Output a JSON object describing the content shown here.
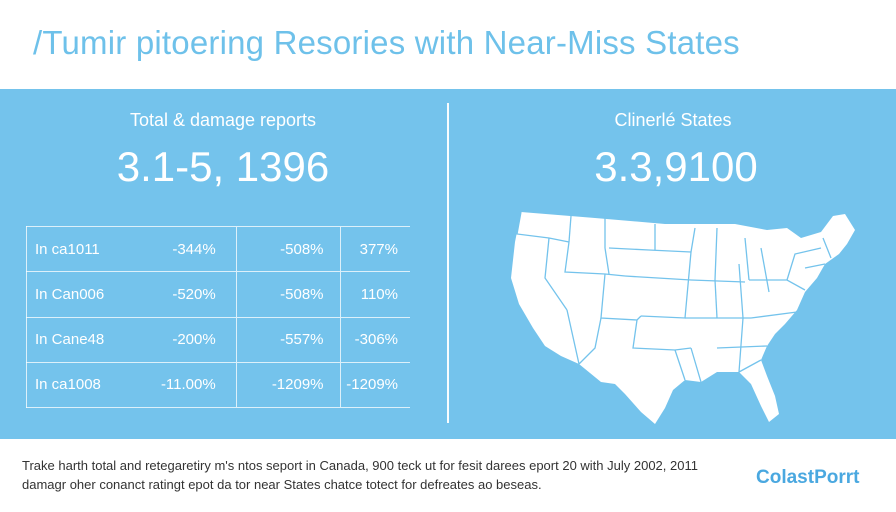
{
  "header": {
    "title": "/Tumir pitoering Resories with Near-Miss States"
  },
  "left_panel": {
    "label": "Total & damage reports",
    "value": "3.1-5, 1396",
    "table": [
      [
        "In ca1011",
        "-344%",
        "-508%",
        "377%"
      ],
      [
        "In Can006",
        "-520%",
        "-508%",
        "110%"
      ],
      [
        "In Cane48",
        "-200%",
        "-557%",
        "-306%"
      ],
      [
        "In ca1008",
        "-11.00%",
        "-1209%",
        "-1209%"
      ]
    ]
  },
  "right_panel": {
    "label": "Clinerlé States",
    "value": "3.3,9100"
  },
  "footer": {
    "line1": "Trake harth total and retegaretiry m's ntos seport in Canada, 900 teck ut for fesit darees eport 20 with July 2002, 2011",
    "line2": "damagr oher conanct ratingt epot da tor near States chatce totect for defreates ao beseas.",
    "brand": "ColastPorrt"
  },
  "colors": {
    "panel": "#74c3ec",
    "title": "#6ec1ea",
    "brand": "#4aa8e0"
  }
}
